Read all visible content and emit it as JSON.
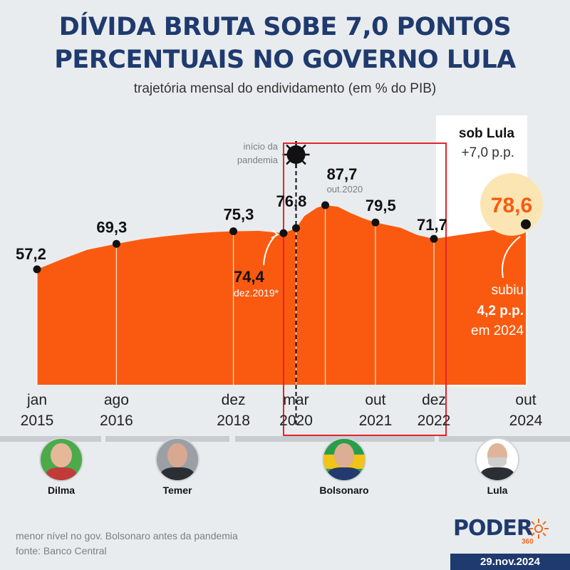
{
  "title_line1": "DÍVIDA BRUTA SOBE 7,0 PONTOS",
  "title_line2": "PERCENTUAIS NO GOVERNO LULA",
  "subtitle": "trajetória mensal do endividamento (em % do PIB)",
  "colors": {
    "area": "#fa5a10",
    "title": "#1f3a6e",
    "highlight": "#e3242b",
    "badge": "#fbe6b3"
  },
  "chart_data": {
    "type": "area",
    "ylim": [
      0,
      95
    ],
    "series": [
      {
        "points": [
          [
            "2015-01",
            57.2
          ],
          [
            "2015-07",
            62.0
          ],
          [
            "2016-01",
            66.5
          ],
          [
            "2016-08",
            69.3
          ],
          [
            "2017-02",
            71.5
          ],
          [
            "2017-08",
            73.0
          ],
          [
            "2018-02",
            74.2
          ],
          [
            "2018-08",
            75.0
          ],
          [
            "2018-12",
            75.3
          ],
          [
            "2019-06",
            75.5
          ],
          [
            "2019-12",
            74.4
          ],
          [
            "2020-03",
            76.8
          ],
          [
            "2020-05",
            82.5
          ],
          [
            "2020-08",
            86.5
          ],
          [
            "2020-10",
            87.7
          ],
          [
            "2021-01",
            87.0
          ],
          [
            "2021-04",
            84.0
          ],
          [
            "2021-07",
            81.5
          ],
          [
            "2021-10",
            79.5
          ],
          [
            "2022-04",
            77.0
          ],
          [
            "2022-08",
            73.5
          ],
          [
            "2022-12",
            71.7
          ],
          [
            "2023-06",
            73.5
          ],
          [
            "2024-01",
            75.5
          ],
          [
            "2024-06",
            77.0
          ],
          [
            "2024-10",
            78.6
          ]
        ]
      }
    ],
    "markers": [
      {
        "date": "2015-01",
        "value": 57.2,
        "label": "57,2"
      },
      {
        "date": "2016-08",
        "value": 69.3,
        "label": "69,3"
      },
      {
        "date": "2018-12",
        "value": 75.3,
        "label": "75,3"
      },
      {
        "date": "2019-12",
        "value": 74.4,
        "label": "74,4",
        "note": "dez.2019*"
      },
      {
        "date": "2020-03",
        "value": 76.8,
        "label": "76,8"
      },
      {
        "date": "2020-10",
        "value": 87.7,
        "label": "87,7",
        "note": "out.2020"
      },
      {
        "date": "2021-10",
        "value": 79.5,
        "label": "79,5"
      },
      {
        "date": "2022-12",
        "value": 71.7,
        "label": "71,7"
      },
      {
        "date": "2024-10",
        "value": 78.6,
        "label": "78,6"
      }
    ],
    "x_ticks": [
      {
        "month": "jan",
        "year": "2015",
        "date": "2015-01"
      },
      {
        "month": "ago",
        "year": "2016",
        "date": "2016-08"
      },
      {
        "month": "dez",
        "year": "2018",
        "date": "2018-12"
      },
      {
        "month": "mar",
        "year": "2020",
        "date": "2020-03"
      },
      {
        "month": "out",
        "year": "2021",
        "date": "2021-10"
      },
      {
        "month": "dez",
        "year": "2022",
        "date": "2022-12"
      },
      {
        "month": "out",
        "year": "2024",
        "date": "2024-10"
      }
    ],
    "annotations": {
      "pandemic": "início da\npandemia",
      "lula_box_title": "sob Lula",
      "lula_box_value": "+7,0 p.p.",
      "callout_line1": "subiu",
      "callout_line2": "4,2 p.p.",
      "callout_line3": "em 2024"
    }
  },
  "presidents": [
    {
      "name": "Dilma"
    },
    {
      "name": "Temer"
    },
    {
      "name": "Bolsonaro"
    },
    {
      "name": "Lula"
    }
  ],
  "footnote": "menor nível no gov. Bolsonaro antes da pandemia",
  "source": "fonte: Banco Central",
  "brand": "PODER",
  "brand_suffix": "360",
  "date": "29.nov.2024"
}
